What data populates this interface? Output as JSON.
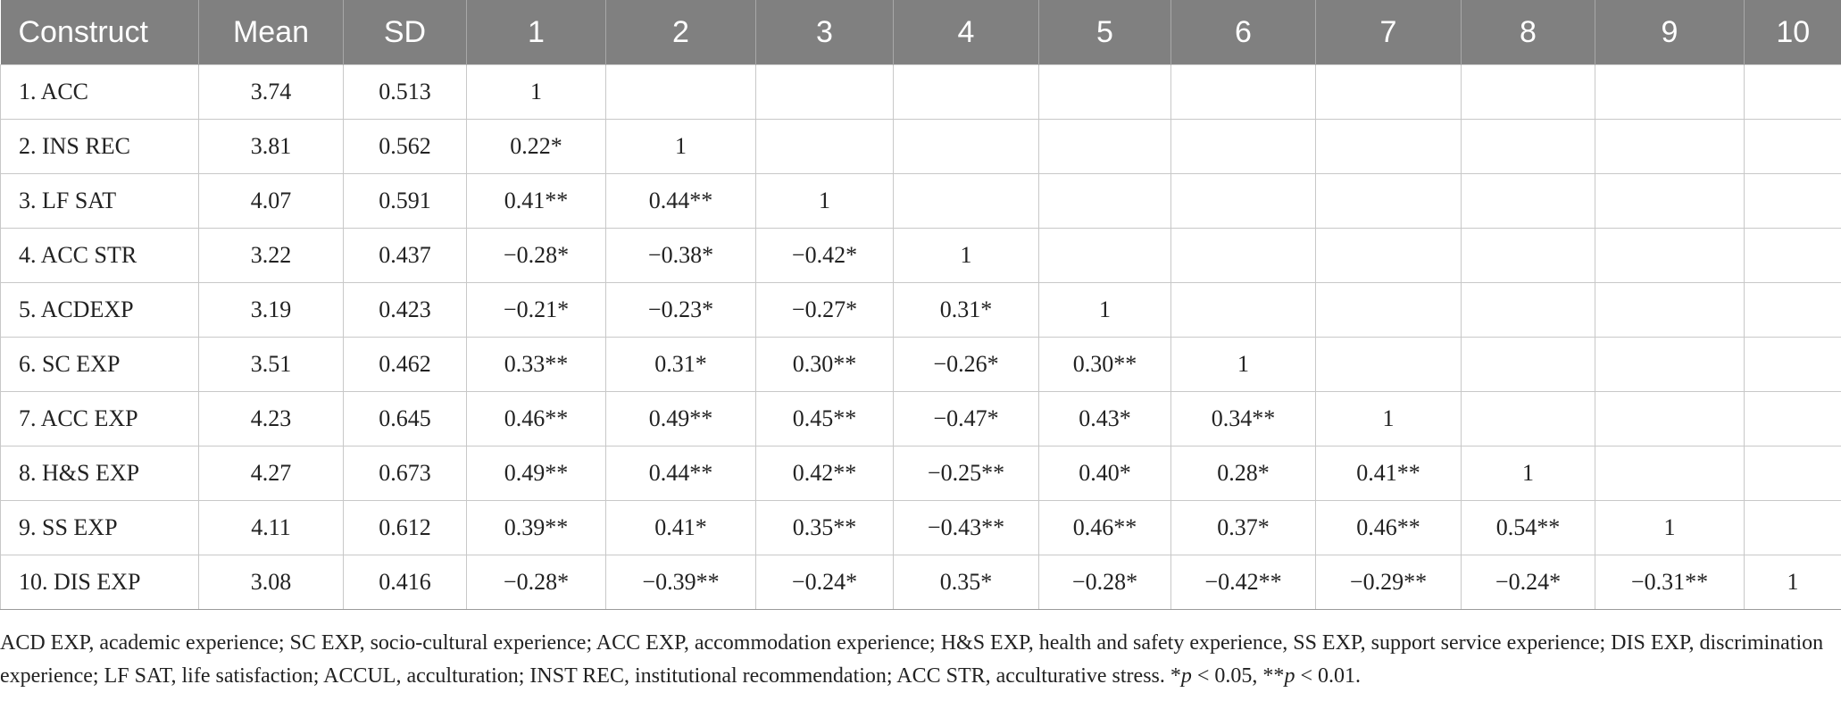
{
  "table": {
    "headers": [
      "Construct",
      "Mean",
      "SD",
      "1",
      "2",
      "3",
      "4",
      "5",
      "6",
      "7",
      "8",
      "9",
      "10"
    ],
    "rows": [
      [
        "1. ACC",
        "3.74",
        "0.513",
        "1",
        "",
        "",
        "",
        "",
        "",
        "",
        "",
        "",
        ""
      ],
      [
        "2. INS REC",
        "3.81",
        "0.562",
        "0.22*",
        "1",
        "",
        "",
        "",
        "",
        "",
        "",
        "",
        ""
      ],
      [
        "3. LF SAT",
        "4.07",
        "0.591",
        "0.41**",
        "0.44**",
        "1",
        "",
        "",
        "",
        "",
        "",
        "",
        ""
      ],
      [
        "4. ACC STR",
        "3.22",
        "0.437",
        "−0.28*",
        "−0.38*",
        "−0.42*",
        "1",
        "",
        "",
        "",
        "",
        "",
        ""
      ],
      [
        "5. ACDEXP",
        "3.19",
        "0.423",
        "−0.21*",
        "−0.23*",
        "−0.27*",
        "0.31*",
        "1",
        "",
        "",
        "",
        "",
        ""
      ],
      [
        "6. SC EXP",
        "3.51",
        "0.462",
        "0.33**",
        "0.31*",
        "0.30**",
        "−0.26*",
        "0.30**",
        "1",
        "",
        "",
        "",
        ""
      ],
      [
        "7. ACC EXP",
        "4.23",
        "0.645",
        "0.46**",
        "0.49**",
        "0.45**",
        "−0.47*",
        "0.43*",
        "0.34**",
        "1",
        "",
        "",
        ""
      ],
      [
        "8. H&S EXP",
        "4.27",
        "0.673",
        "0.49**",
        "0.44**",
        "0.42**",
        "−0.25**",
        "0.40*",
        "0.28*",
        "0.41**",
        "1",
        "",
        ""
      ],
      [
        "9. SS EXP",
        "4.11",
        "0.612",
        "0.39**",
        "0.41*",
        "0.35**",
        "−0.43**",
        "0.46**",
        "0.37*",
        "0.46**",
        "0.54**",
        "1",
        ""
      ],
      [
        "10. DIS EXP",
        "3.08",
        "0.416",
        "−0.28*",
        "−0.39**",
        "−0.24*",
        "0.35*",
        "−0.28*",
        "−0.42**",
        "−0.29**",
        "−0.24*",
        "−0.31**",
        "1"
      ]
    ]
  },
  "footnote": {
    "text": "ACD EXP, academic experience; SC EXP, socio-cultural experience; ACC EXP, accommodation experience; H&S EXP, health and safety experience, SS EXP, support service experience; DIS EXP, discrimination experience; LF SAT, life satisfaction; ACCUL, acculturation; INST REC, institutional recommendation; ACC STR, acculturative stress. *",
    "p1": "p",
    "mid": " < 0.05, **",
    "p2": "p",
    "end": " < 0.01."
  }
}
